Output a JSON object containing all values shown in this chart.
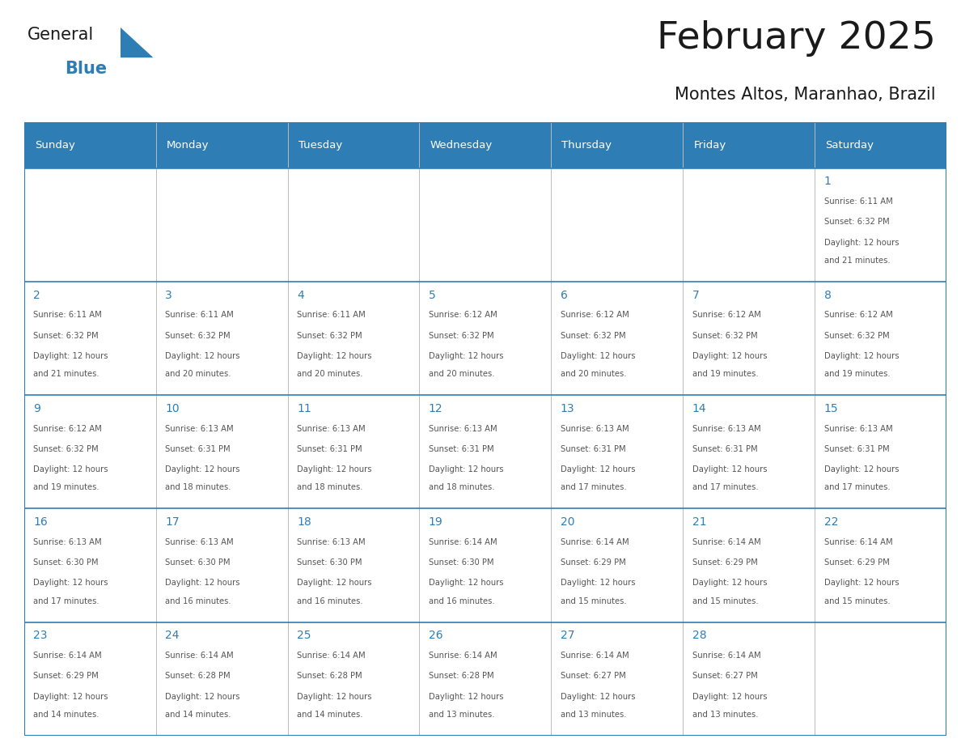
{
  "title": "February 2025",
  "subtitle": "Montes Altos, Maranhao, Brazil",
  "days_of_week": [
    "Sunday",
    "Monday",
    "Tuesday",
    "Wednesday",
    "Thursday",
    "Friday",
    "Saturday"
  ],
  "header_bg": "#2e7db5",
  "header_text": "#ffffff",
  "cell_bg": "#ffffff",
  "grid_color": "#2e7db5",
  "text_color": "#555555",
  "day_num_color": "#2e7db5",
  "title_color": "#1a1a1a",
  "subtitle_color": "#1a1a1a",
  "logo_general_color": "#1a1a1a",
  "logo_blue_color": "#2e7db5",
  "calendar": [
    [
      null,
      null,
      null,
      null,
      null,
      null,
      {
        "day": 1,
        "sunrise": "6:11 AM",
        "sunset": "6:32 PM",
        "daylight": "12 hours and 21 minutes."
      }
    ],
    [
      {
        "day": 2,
        "sunrise": "6:11 AM",
        "sunset": "6:32 PM",
        "daylight": "12 hours and 21 minutes."
      },
      {
        "day": 3,
        "sunrise": "6:11 AM",
        "sunset": "6:32 PM",
        "daylight": "12 hours and 20 minutes."
      },
      {
        "day": 4,
        "sunrise": "6:11 AM",
        "sunset": "6:32 PM",
        "daylight": "12 hours and 20 minutes."
      },
      {
        "day": 5,
        "sunrise": "6:12 AM",
        "sunset": "6:32 PM",
        "daylight": "12 hours and 20 minutes."
      },
      {
        "day": 6,
        "sunrise": "6:12 AM",
        "sunset": "6:32 PM",
        "daylight": "12 hours and 20 minutes."
      },
      {
        "day": 7,
        "sunrise": "6:12 AM",
        "sunset": "6:32 PM",
        "daylight": "12 hours and 19 minutes."
      },
      {
        "day": 8,
        "sunrise": "6:12 AM",
        "sunset": "6:32 PM",
        "daylight": "12 hours and 19 minutes."
      }
    ],
    [
      {
        "day": 9,
        "sunrise": "6:12 AM",
        "sunset": "6:32 PM",
        "daylight": "12 hours and 19 minutes."
      },
      {
        "day": 10,
        "sunrise": "6:13 AM",
        "sunset": "6:31 PM",
        "daylight": "12 hours and 18 minutes."
      },
      {
        "day": 11,
        "sunrise": "6:13 AM",
        "sunset": "6:31 PM",
        "daylight": "12 hours and 18 minutes."
      },
      {
        "day": 12,
        "sunrise": "6:13 AM",
        "sunset": "6:31 PM",
        "daylight": "12 hours and 18 minutes."
      },
      {
        "day": 13,
        "sunrise": "6:13 AM",
        "sunset": "6:31 PM",
        "daylight": "12 hours and 17 minutes."
      },
      {
        "day": 14,
        "sunrise": "6:13 AM",
        "sunset": "6:31 PM",
        "daylight": "12 hours and 17 minutes."
      },
      {
        "day": 15,
        "sunrise": "6:13 AM",
        "sunset": "6:31 PM",
        "daylight": "12 hours and 17 minutes."
      }
    ],
    [
      {
        "day": 16,
        "sunrise": "6:13 AM",
        "sunset": "6:30 PM",
        "daylight": "12 hours and 17 minutes."
      },
      {
        "day": 17,
        "sunrise": "6:13 AM",
        "sunset": "6:30 PM",
        "daylight": "12 hours and 16 minutes."
      },
      {
        "day": 18,
        "sunrise": "6:13 AM",
        "sunset": "6:30 PM",
        "daylight": "12 hours and 16 minutes."
      },
      {
        "day": 19,
        "sunrise": "6:14 AM",
        "sunset": "6:30 PM",
        "daylight": "12 hours and 16 minutes."
      },
      {
        "day": 20,
        "sunrise": "6:14 AM",
        "sunset": "6:29 PM",
        "daylight": "12 hours and 15 minutes."
      },
      {
        "day": 21,
        "sunrise": "6:14 AM",
        "sunset": "6:29 PM",
        "daylight": "12 hours and 15 minutes."
      },
      {
        "day": 22,
        "sunrise": "6:14 AM",
        "sunset": "6:29 PM",
        "daylight": "12 hours and 15 minutes."
      }
    ],
    [
      {
        "day": 23,
        "sunrise": "6:14 AM",
        "sunset": "6:29 PM",
        "daylight": "12 hours and 14 minutes."
      },
      {
        "day": 24,
        "sunrise": "6:14 AM",
        "sunset": "6:28 PM",
        "daylight": "12 hours and 14 minutes."
      },
      {
        "day": 25,
        "sunrise": "6:14 AM",
        "sunset": "6:28 PM",
        "daylight": "12 hours and 14 minutes."
      },
      {
        "day": 26,
        "sunrise": "6:14 AM",
        "sunset": "6:28 PM",
        "daylight": "12 hours and 13 minutes."
      },
      {
        "day": 27,
        "sunrise": "6:14 AM",
        "sunset": "6:27 PM",
        "daylight": "12 hours and 13 minutes."
      },
      {
        "day": 28,
        "sunrise": "6:14 AM",
        "sunset": "6:27 PM",
        "daylight": "12 hours and 13 minutes."
      },
      null
    ]
  ]
}
